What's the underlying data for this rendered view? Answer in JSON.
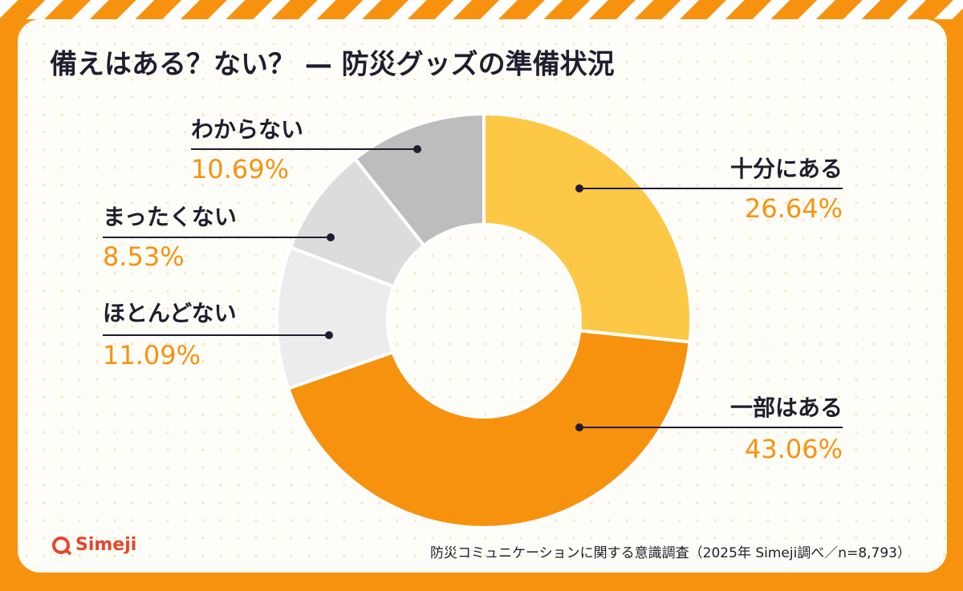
{
  "chart_data": {
    "type": "pie",
    "title": "備えはある？ない？ — 防災グッズの準備状況",
    "categories": [
      "十分にある",
      "一部はある",
      "ほとんどない",
      "まったくない",
      "わからない"
    ],
    "values": [
      26.64,
      43.06,
      11.09,
      8.53,
      10.69
    ],
    "value_labels": [
      "26.64%",
      "43.06%",
      "11.09%",
      "8.53%",
      "10.69%"
    ],
    "colors": [
      "#fcc845",
      "#f7920f",
      "#ececec",
      "#dcdcdc",
      "#bdbdbd"
    ],
    "source": "防災コミュニケーションに関する意識調査（2025年 Simeji調べ／n=8,793）",
    "logo": "Simeji"
  }
}
